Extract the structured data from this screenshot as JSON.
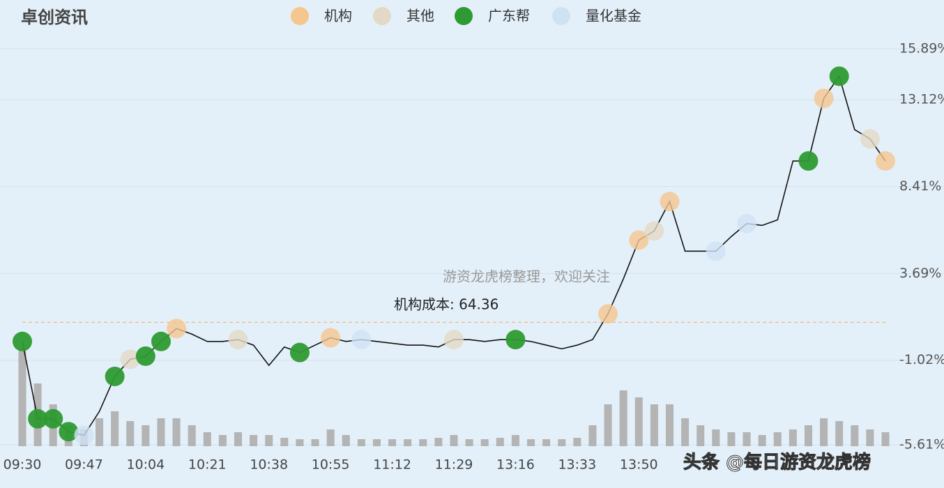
{
  "chart_data": {
    "type": "line",
    "title": "卓创资讯",
    "categories": [
      "09:30",
      null,
      null,
      null,
      "09:47",
      null,
      null,
      null,
      "10:04",
      null,
      null,
      null,
      "10:21",
      null,
      null,
      null,
      "10:38",
      null,
      null,
      null,
      "10:55",
      null,
      null,
      null,
      "11:12",
      null,
      null,
      null,
      "11:29",
      null,
      null,
      null,
      "13:16",
      null,
      null,
      null,
      "13:33",
      null,
      null,
      null,
      "13:50",
      null,
      null,
      null,
      null,
      null,
      null,
      null,
      null,
      null,
      null,
      null,
      null,
      null,
      null,
      null,
      null
    ],
    "values": [
      0.0,
      -4.2,
      -4.2,
      -4.9,
      -5.1,
      -3.8,
      -1.9,
      -0.97,
      -0.8,
      0.0,
      0.7,
      0.4,
      0.0,
      0.0,
      0.1,
      -0.2,
      -1.3,
      -0.3,
      -0.6,
      -0.2,
      0.2,
      0.0,
      0.1,
      0.0,
      -0.1,
      -0.2,
      -0.2,
      -0.3,
      0.1,
      0.1,
      0.0,
      0.1,
      0.1,
      0.0,
      -0.2,
      -0.4,
      -0.2,
      0.1,
      1.5,
      3.4,
      5.5,
      6.0,
      7.6,
      4.9,
      4.9,
      4.9,
      5.7,
      6.4,
      6.3,
      6.6,
      9.8,
      9.8,
      13.2,
      14.4,
      11.5,
      11.0,
      9.8
    ],
    "color": "#111111",
    "volume": [
      70,
      45,
      30,
      15,
      12,
      20,
      25,
      18,
      15,
      20,
      20,
      15,
      10,
      8,
      10,
      8,
      8,
      6,
      5,
      5,
      12,
      8,
      5,
      5,
      5,
      5,
      5,
      6,
      8,
      5,
      5,
      6,
      8,
      5,
      5,
      5,
      6,
      15,
      30,
      40,
      35,
      30,
      30,
      20,
      15,
      12,
      10,
      10,
      8,
      10,
      12,
      15,
      20,
      18,
      15,
      12,
      10
    ],
    "volume_color": "#b4b4b4",
    "y2lim": [
      0,
      100
    ],
    "series": [
      {
        "name": "机构",
        "color": "#f5c690",
        "values": [
          null,
          null,
          null,
          null,
          null,
          null,
          null,
          null,
          null,
          null,
          0.7,
          null,
          null,
          null,
          null,
          null,
          null,
          null,
          null,
          null,
          0.2,
          null,
          null,
          null,
          null,
          null,
          null,
          null,
          null,
          null,
          null,
          null,
          null,
          null,
          null,
          null,
          null,
          null,
          1.5,
          null,
          5.5,
          null,
          7.6,
          null,
          null,
          null,
          null,
          null,
          null,
          null,
          null,
          null,
          13.2,
          null,
          null,
          null,
          9.8
        ]
      },
      {
        "name": "其他",
        "color": "#e3d9c6",
        "values": [
          null,
          null,
          null,
          null,
          null,
          null,
          null,
          -0.97,
          null,
          null,
          null,
          null,
          null,
          null,
          0.1,
          null,
          null,
          null,
          null,
          null,
          null,
          null,
          null,
          null,
          null,
          null,
          null,
          null,
          0.1,
          null,
          null,
          null,
          null,
          null,
          null,
          null,
          null,
          null,
          null,
          null,
          null,
          6.0,
          null,
          null,
          null,
          null,
          null,
          null,
          null,
          null,
          null,
          null,
          null,
          null,
          null,
          11.0,
          null
        ]
      },
      {
        "name": "广东帮",
        "color": "#2e9a33",
        "values": [
          0.0,
          -4.2,
          -4.2,
          -4.9,
          null,
          null,
          -1.9,
          null,
          -0.8,
          0.0,
          null,
          null,
          null,
          null,
          null,
          null,
          null,
          null,
          -0.6,
          null,
          null,
          null,
          null,
          null,
          null,
          null,
          null,
          null,
          null,
          null,
          null,
          null,
          0.1,
          null,
          null,
          null,
          null,
          null,
          null,
          null,
          null,
          null,
          null,
          null,
          null,
          null,
          null,
          null,
          null,
          null,
          null,
          9.8,
          null,
          14.4,
          null,
          null,
          null
        ]
      },
      {
        "name": "量化基金",
        "color": "#cfe2f4",
        "values": [
          null,
          null,
          null,
          null,
          -5.1,
          null,
          null,
          null,
          null,
          null,
          null,
          null,
          null,
          null,
          null,
          null,
          null,
          null,
          null,
          null,
          null,
          null,
          0.1,
          null,
          null,
          null,
          null,
          null,
          null,
          null,
          null,
          null,
          null,
          null,
          null,
          null,
          null,
          null,
          null,
          null,
          null,
          null,
          null,
          null,
          null,
          4.9,
          null,
          6.4,
          null,
          null,
          null,
          null,
          null,
          null,
          null,
          null,
          null
        ]
      }
    ],
    "ylim": [
      -5.61,
      15.89
    ],
    "yticks": [
      {
        "value": 15.89,
        "label": "15.89%"
      },
      {
        "value": 13.12,
        "label": "13.12%"
      },
      {
        "value": 8.41,
        "label": "8.41%"
      },
      {
        "value": 3.69,
        "label": "3.69%"
      },
      {
        "value": -1.02,
        "label": "-1.02%"
      },
      {
        "value": -5.61,
        "label": "-5.61%"
      }
    ],
    "grid": true,
    "cost_line": 1.04,
    "annotations": [
      "机构成本: 64.36",
      "游资龙虎榜整理，欢迎关注",
      "头条 @每日游资龙虎榜"
    ]
  }
}
